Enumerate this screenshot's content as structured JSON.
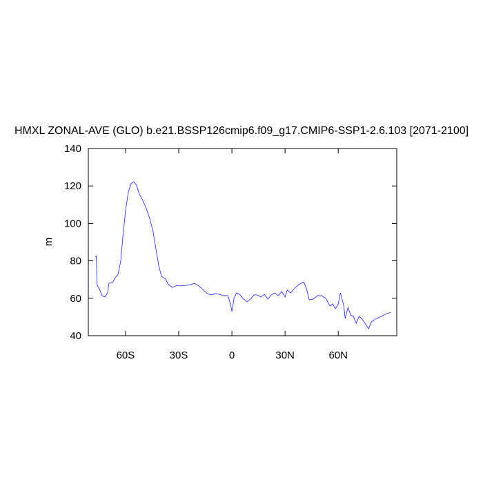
{
  "chart_data": {
    "type": "line",
    "title": "HMXL ZONAL-AVE (GLO) b.e21.BSSP126cmip6.f09_g17.CMIP6-SSP1-2.6.103 [2071-2100]",
    "ylabel": "m",
    "x": [
      -77.1,
      -76.5,
      -76,
      -74.8,
      -73.2,
      -71.7,
      -70.1,
      -69.4,
      -67.4,
      -65.8,
      -64.3,
      -62.7,
      -61.6,
      -60,
      -58.4,
      -56.9,
      -55.3,
      -53.8,
      -52.2,
      -50.3,
      -48.3,
      -46.4,
      -44.4,
      -42.9,
      -41.3,
      -39.7,
      -37.4,
      -35.8,
      -33.5,
      -31.2,
      -28.8,
      -25.7,
      -23.4,
      -21,
      -18.7,
      -16.4,
      -14,
      -11.7,
      -9.4,
      -7,
      -4.7,
      -2.3,
      -0.8,
      0,
      1.2,
      2.7,
      4.7,
      6.2,
      8.6,
      10.1,
      12.5,
      14.4,
      16.4,
      18.3,
      20.3,
      22.2,
      24.2,
      26.1,
      28.1,
      30,
      31.2,
      33.1,
      35.5,
      37.8,
      40.5,
      42.1,
      43.6,
      46,
      48.3,
      50.6,
      53,
      55.3,
      56.9,
      58.4,
      60,
      61.2,
      63.1,
      63.9,
      65.5,
      67,
      68.6,
      70.1,
      71.7,
      73.2,
      75.6,
      77.1,
      78.7,
      81,
      84.2,
      87.3,
      89.6
    ],
    "series": [
      {
        "name": "HMXL",
        "color": "#3333ff",
        "values": [
          82.1,
          82.5,
          67,
          65,
          61.4,
          60.7,
          62.9,
          68,
          68.4,
          71,
          72.5,
          79.9,
          92,
          106.8,
          116.8,
          121.2,
          122.3,
          120.4,
          115.6,
          112.3,
          107.9,
          102.7,
          95.4,
          86.5,
          77.6,
          71.7,
          70.3,
          67.3,
          65.8,
          66.9,
          66.6,
          66.9,
          67.3,
          68,
          66.6,
          64.7,
          62.5,
          61.8,
          62.5,
          62.1,
          61.4,
          61.4,
          57,
          52.9,
          59.9,
          62.9,
          61.8,
          59.9,
          58.1,
          59.2,
          61.8,
          61.8,
          60.7,
          62.1,
          59.6,
          61.8,
          62.9,
          61.4,
          63.6,
          60.7,
          64.4,
          62.9,
          65.5,
          67.3,
          68.8,
          65.1,
          59.2,
          59.6,
          61.4,
          61.4,
          59.9,
          55.9,
          57,
          54.4,
          57,
          62.9,
          56.2,
          49.2,
          55.1,
          51.1,
          50.3,
          46.6,
          50.3,
          49.2,
          45.9,
          43.7,
          47.4,
          48.9,
          50.3,
          51.8,
          52.5
        ]
      }
    ],
    "xlim": [
      -81,
      93
    ],
    "ylim": [
      40,
      140
    ],
    "xticks": [
      {
        "value": -60,
        "label": "60S"
      },
      {
        "value": -30,
        "label": "30S"
      },
      0,
      {
        "value": 30,
        "label": "30N"
      },
      {
        "value": 60,
        "label": "60N"
      }
    ],
    "yticks": [
      40,
      60,
      80,
      100,
      120,
      140
    ]
  }
}
